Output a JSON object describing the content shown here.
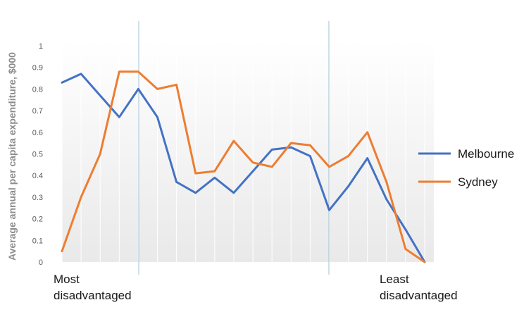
{
  "chart_data": {
    "type": "line",
    "title": "",
    "xlabel": "",
    "ylabel": "Average annual per capita expenditure, $000",
    "ylim": [
      0,
      1
    ],
    "yticks": [
      "0",
      "0.1",
      "0.2",
      "0.3",
      "0.4",
      "0.5",
      "0.6",
      "0.7",
      "0.8",
      "0.9",
      "1"
    ],
    "x": [
      1,
      2,
      3,
      4,
      5,
      6,
      7,
      8,
      9,
      10,
      11,
      12,
      13,
      14,
      15,
      16,
      17,
      18,
      19,
      20
    ],
    "series": [
      {
        "name": "Melbourne",
        "color": "#4472c4",
        "values": [
          0.83,
          0.87,
          0.77,
          0.67,
          0.8,
          0.67,
          0.37,
          0.32,
          0.39,
          0.32,
          0.42,
          0.52,
          0.53,
          0.49,
          0.24,
          0.35,
          0.48,
          0.29,
          0.15,
          0.0
        ]
      },
      {
        "name": "Sydney",
        "color": "#ed7d31",
        "values": [
          0.05,
          0.3,
          0.5,
          0.88,
          0.88,
          0.8,
          0.82,
          0.41,
          0.42,
          0.56,
          0.46,
          0.44,
          0.55,
          0.54,
          0.44,
          0.49,
          0.6,
          0.37,
          0.06,
          0.0
        ]
      }
    ],
    "annotations": {
      "left_line1": "Most",
      "left_line2": "disadvantaged",
      "right_line1": "Least",
      "right_line2": "disadvantaged"
    },
    "grid": true,
    "legend": "right"
  }
}
